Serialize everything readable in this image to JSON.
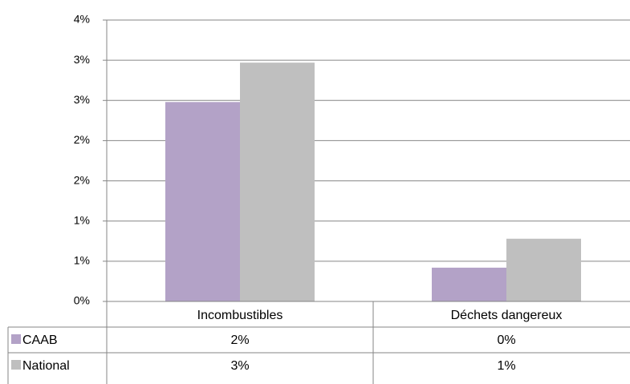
{
  "chart_data": {
    "type": "bar",
    "categories": [
      "Incombustibles",
      "Déchets dangereux"
    ],
    "series": [
      {
        "name": "CAAB",
        "color": "#b3a2c7",
        "values": [
          2.48,
          0.42
        ],
        "value_labels": [
          "2%",
          "0%"
        ]
      },
      {
        "name": "National",
        "color": "#bfbfbf",
        "values": [
          2.97,
          0.78
        ],
        "value_labels": [
          "3%",
          "1%"
        ]
      }
    ],
    "ylim": [
      0,
      3.5
    ],
    "yticks": [
      {
        "value": 0,
        "label": "0%"
      },
      {
        "value": 0.5,
        "label": "1%"
      },
      {
        "value": 1,
        "label": "1%"
      },
      {
        "value": 1.5,
        "label": "2%"
      },
      {
        "value": 2,
        "label": "2%"
      },
      {
        "value": 2.5,
        "label": "3%"
      },
      {
        "value": 3,
        "label": "3%"
      },
      {
        "value": 3.5,
        "label": "4%"
      }
    ],
    "grid": true
  }
}
